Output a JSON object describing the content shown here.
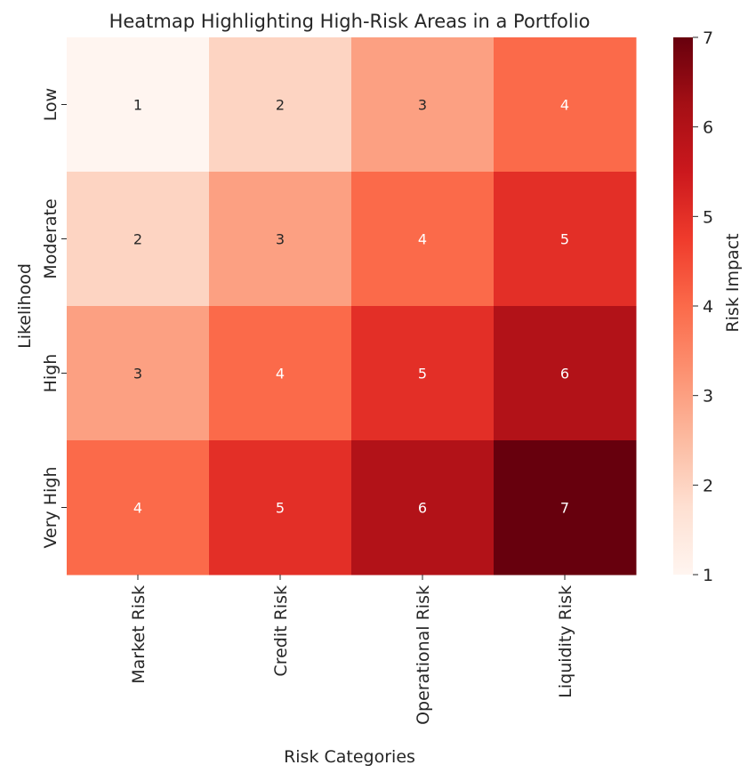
{
  "chart_data": {
    "type": "heatmap",
    "title": "Heatmap Highlighting High-Risk Areas in a Portfolio",
    "xlabel": "Risk Categories",
    "ylabel": "Likelihood",
    "x_categories": [
      "Market Risk",
      "Credit Risk",
      "Operational Risk",
      "Liquidity Risk"
    ],
    "y_categories": [
      "Low",
      "Moderate",
      "High",
      "Very High"
    ],
    "values": [
      [
        1,
        2,
        3,
        4
      ],
      [
        2,
        3,
        4,
        5
      ],
      [
        3,
        4,
        5,
        6
      ],
      [
        4,
        5,
        6,
        7
      ]
    ],
    "colormap": "Reds",
    "colorbar": {
      "label": "Risk Impact",
      "range": [
        1,
        7
      ],
      "ticks": [
        "1",
        "2",
        "3",
        "4",
        "5",
        "6",
        "7"
      ]
    },
    "annotations": true
  }
}
